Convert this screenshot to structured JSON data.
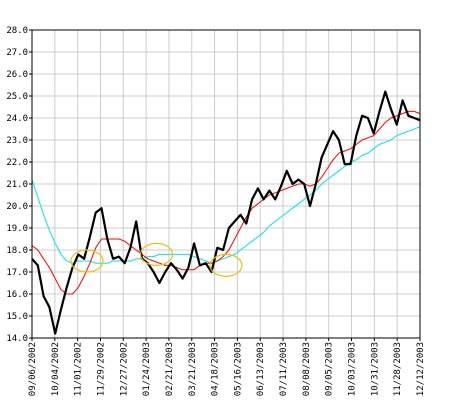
{
  "chart_data": {
    "type": "line",
    "ylim": [
      14,
      28
    ],
    "grid": true,
    "y_ticks": [
      "14.0",
      "15.0",
      "16.0",
      "17.0",
      "18.0",
      "19.0",
      "20.0",
      "21.0",
      "22.0",
      "23.0",
      "24.0",
      "25.0",
      "26.0",
      "27.0",
      "28.0"
    ],
    "x_ticks": [
      "09/06/2002",
      "10/04/2002",
      "11/01/2002",
      "11/29/2002",
      "12/27/2002",
      "01/24/2003",
      "02/21/2003",
      "03/21/2003",
      "04/18/2003",
      "05/16/2003",
      "06/13/2003",
      "07/11/2003",
      "08/08/2003",
      "09/05/2003",
      "10/03/2003",
      "10/31/2003",
      "11/28/2003",
      "12/12/2003"
    ],
    "x_range": [
      0,
      67
    ],
    "colors": {
      "price": "#000000",
      "ma_short": "#ff0000",
      "ma_long": "#00e5ee",
      "circles": "#f0c000",
      "grid": "#cccccc"
    },
    "series": [
      {
        "key": "price",
        "x": [
          0,
          1,
          2,
          3,
          4,
          5,
          6,
          7,
          8,
          9,
          10,
          11,
          12,
          13,
          14,
          15,
          16,
          17,
          18,
          19,
          20,
          21,
          22,
          23,
          24,
          25,
          26,
          27,
          28,
          29,
          30,
          31,
          32,
          33,
          34,
          35,
          36,
          37,
          38,
          39,
          40,
          41,
          42,
          43,
          44,
          45,
          46,
          47,
          48,
          49,
          50,
          51,
          52,
          53,
          54,
          55,
          56,
          57,
          58,
          59,
          60,
          61,
          62,
          63,
          64,
          65,
          66,
          67
        ],
        "values": [
          17.6,
          17.3,
          15.9,
          15.4,
          14.2,
          15.3,
          16.3,
          17.2,
          17.8,
          17.6,
          18.6,
          19.7,
          19.9,
          18.5,
          17.6,
          17.7,
          17.4,
          18.1,
          19.3,
          17.6,
          17.4,
          17.0,
          16.5,
          17.0,
          17.4,
          17.1,
          16.7,
          17.2,
          18.3,
          17.3,
          17.4,
          17.0,
          18.1,
          18.0,
          19.0,
          19.3,
          19.6,
          19.2,
          20.3,
          20.8,
          20.3,
          20.7,
          20.3,
          20.9,
          21.6,
          21.0,
          21.2,
          21.0,
          20.0,
          21.0,
          22.2,
          22.8,
          23.4,
          23.0,
          21.9,
          21.9,
          23.2,
          24.1,
          24.0,
          23.3,
          24.3,
          25.2,
          24.4,
          23.7,
          24.8,
          24.1,
          24.0,
          23.9
        ]
      },
      {
        "key": "ma_short",
        "x": [
          0,
          1,
          2,
          3,
          4,
          5,
          6,
          7,
          8,
          9,
          10,
          11,
          12,
          13,
          14,
          15,
          16,
          17,
          18,
          19,
          20,
          21,
          22,
          23,
          24,
          25,
          26,
          27,
          28,
          29,
          30,
          31,
          32,
          33,
          34,
          35,
          36,
          37,
          38,
          39,
          40,
          41,
          42,
          43,
          44,
          45,
          46,
          47,
          48,
          49,
          50,
          51,
          52,
          53,
          54,
          55,
          56,
          57,
          58,
          59,
          60,
          61,
          62,
          63,
          64,
          65,
          66,
          67
        ],
        "values": [
          18.2,
          18.0,
          17.6,
          17.2,
          16.7,
          16.2,
          16.0,
          16.0,
          16.3,
          16.8,
          17.4,
          18.1,
          18.5,
          18.5,
          18.5,
          18.5,
          18.4,
          18.2,
          18.0,
          17.8,
          17.6,
          17.5,
          17.4,
          17.3,
          17.3,
          17.2,
          17.1,
          17.1,
          17.1,
          17.3,
          17.4,
          17.4,
          17.5,
          17.7,
          18.0,
          18.5,
          19.0,
          19.5,
          19.9,
          20.1,
          20.3,
          20.5,
          20.6,
          20.7,
          20.8,
          20.9,
          21.0,
          21.0,
          20.9,
          21.0,
          21.3,
          21.7,
          22.1,
          22.4,
          22.5,
          22.6,
          22.8,
          23.0,
          23.1,
          23.2,
          23.5,
          23.8,
          24.0,
          24.1,
          24.2,
          24.3,
          24.3,
          24.2
        ]
      },
      {
        "key": "ma_long",
        "x": [
          0,
          1,
          2,
          3,
          4,
          5,
          6,
          7,
          8,
          9,
          10,
          11,
          12,
          13,
          14,
          15,
          16,
          17,
          18,
          19,
          20,
          21,
          22,
          23,
          24,
          25,
          26,
          27,
          28,
          29,
          30,
          31,
          32,
          33,
          34,
          35,
          36,
          37,
          38,
          39,
          40,
          41,
          42,
          43,
          44,
          45,
          46,
          47,
          48,
          49,
          50,
          51,
          52,
          53,
          54,
          55,
          56,
          57,
          58,
          59,
          60,
          61,
          62,
          63,
          64,
          65,
          66,
          67
        ],
        "values": [
          21.2,
          20.4,
          19.6,
          18.9,
          18.3,
          17.8,
          17.5,
          17.4,
          17.5,
          17.5,
          17.5,
          17.4,
          17.4,
          17.4,
          17.5,
          17.5,
          17.5,
          17.5,
          17.6,
          17.6,
          17.7,
          17.7,
          17.8,
          17.8,
          17.8,
          17.8,
          17.8,
          17.8,
          17.7,
          17.6,
          17.5,
          17.4,
          17.5,
          17.6,
          17.7,
          17.8,
          18.0,
          18.2,
          18.4,
          18.6,
          18.8,
          19.1,
          19.3,
          19.5,
          19.7,
          19.9,
          20.1,
          20.3,
          20.5,
          20.7,
          21.0,
          21.2,
          21.4,
          21.6,
          21.8,
          22.0,
          22.1,
          22.3,
          22.4,
          22.6,
          22.8,
          22.9,
          23.0,
          23.2,
          23.3,
          23.4,
          23.5,
          23.6
        ]
      }
    ],
    "annotations": [
      {
        "type": "circle",
        "x": 9.5,
        "y": 17.5
      },
      {
        "type": "circle",
        "x": 21.5,
        "y": 17.8
      },
      {
        "type": "circle",
        "x": 33.5,
        "y": 17.3
      }
    ]
  }
}
